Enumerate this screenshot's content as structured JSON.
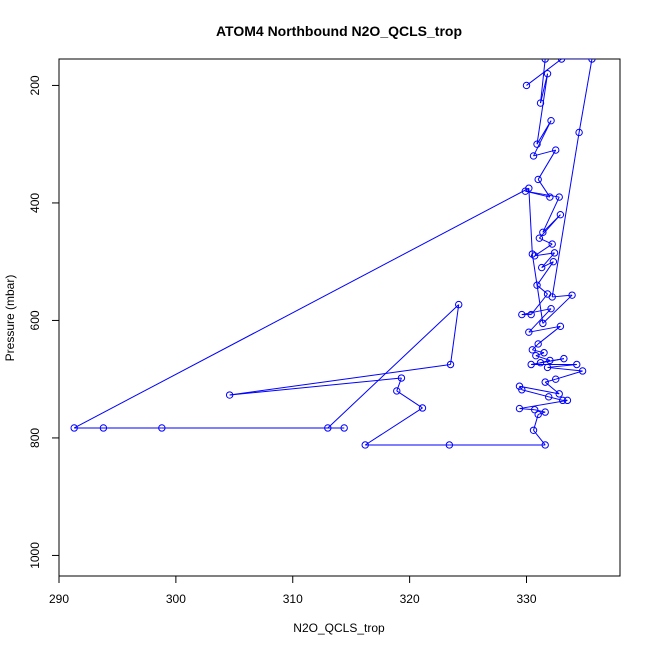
{
  "chart_data": {
    "type": "line",
    "title": "ATOM4 Northbound N2O_QCLS_trop",
    "xlabel": "N2O_QCLS_trop",
    "ylabel": "Pressure (mbar)",
    "xlim": [
      290,
      338
    ],
    "ylim": [
      1035,
      155
    ],
    "y_reversed": true,
    "grid": false,
    "xticks": [
      290,
      300,
      310,
      320,
      330
    ],
    "yticks": [
      200,
      400,
      600,
      800,
      1000
    ],
    "series": [
      {
        "color": "#0000ff",
        "marker": "circle-open",
        "points": [
          [
            331.6,
            155
          ],
          [
            331.2,
            230
          ],
          [
            331.8,
            180
          ],
          [
            330.9,
            300
          ],
          [
            332.1,
            260
          ],
          [
            330.6,
            320
          ],
          [
            332.5,
            310
          ],
          [
            331.0,
            360
          ],
          [
            332.0,
            390
          ],
          [
            329.9,
            380
          ],
          [
            332.8,
            390
          ],
          [
            331.4,
            450
          ],
          [
            332.9,
            420
          ],
          [
            331.1,
            460
          ],
          [
            332.2,
            470
          ],
          [
            330.7,
            490
          ],
          [
            332.4,
            485
          ],
          [
            331.3,
            510
          ],
          [
            332.3,
            500
          ],
          [
            330.9,
            540
          ],
          [
            331.8,
            555
          ],
          [
            330.4,
            590
          ],
          [
            329.6,
            590
          ],
          [
            332.1,
            580
          ],
          [
            330.2,
            620
          ],
          [
            332.9,
            610
          ],
          [
            331.0,
            640
          ],
          [
            330.5,
            650
          ],
          [
            331.5,
            655
          ],
          [
            330.8,
            660
          ],
          [
            332.0,
            668
          ],
          [
            331.2,
            672
          ],
          [
            333.2,
            665
          ],
          [
            330.4,
            675
          ],
          [
            334.3,
            675
          ],
          [
            331.8,
            680
          ],
          [
            334.8,
            686
          ],
          [
            332.5,
            700
          ],
          [
            331.6,
            705
          ],
          [
            332.8,
            725
          ],
          [
            329.4,
            712
          ],
          [
            329.6,
            718
          ],
          [
            331.9,
            730
          ],
          [
            333.1,
            736
          ],
          [
            333.5,
            736
          ],
          [
            329.4,
            750
          ],
          [
            330.7,
            752
          ],
          [
            331.6,
            756
          ],
          [
            331.0,
            760
          ],
          [
            330.6,
            787
          ],
          [
            331.6,
            812
          ],
          [
            323.4,
            812
          ],
          [
            316.2,
            812
          ],
          [
            321.1,
            749
          ],
          [
            318.9,
            720
          ],
          [
            319.3,
            698
          ],
          [
            304.6,
            727
          ],
          [
            323.5,
            675
          ],
          [
            324.2,
            573
          ],
          [
            313.0,
            783
          ],
          [
            314.4,
            783
          ],
          [
            298.8,
            783
          ],
          [
            293.8,
            783
          ],
          [
            291.3,
            783
          ],
          [
            330.2,
            375
          ],
          [
            330.5,
            487
          ],
          [
            331.4,
            605
          ],
          [
            333.9,
            557
          ],
          [
            332.2,
            560
          ],
          [
            334.5,
            280
          ],
          [
            335.6,
            155
          ],
          [
            333.0,
            155
          ],
          [
            330.0,
            200
          ]
        ]
      }
    ]
  }
}
